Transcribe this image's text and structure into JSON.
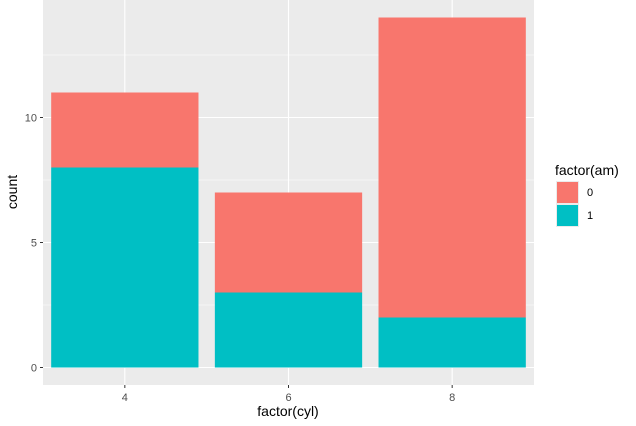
{
  "chart_data": {
    "type": "bar",
    "stacked": true,
    "categories": [
      "4",
      "6",
      "8"
    ],
    "series": [
      {
        "name": "0",
        "values": [
          3,
          4,
          12
        ],
        "color": "#F8766D"
      },
      {
        "name": "1",
        "values": [
          8,
          3,
          2
        ],
        "color": "#00BFC4"
      }
    ],
    "xlabel": "factor(cyl)",
    "ylabel": "count",
    "ylim": [
      -0.7,
      14.7
    ],
    "yticks": [
      0,
      5,
      10
    ],
    "y_minor_ticks": [
      2.5,
      7.5,
      12.5
    ],
    "grid": true,
    "panel_background": "#EBEBEB",
    "grid_color": "#FFFFFF",
    "legend": {
      "title": "factor(am)",
      "position": "right",
      "entries": [
        {
          "label": "0",
          "color": "#F8766D"
        },
        {
          "label": "1",
          "color": "#00BFC4"
        }
      ]
    }
  }
}
